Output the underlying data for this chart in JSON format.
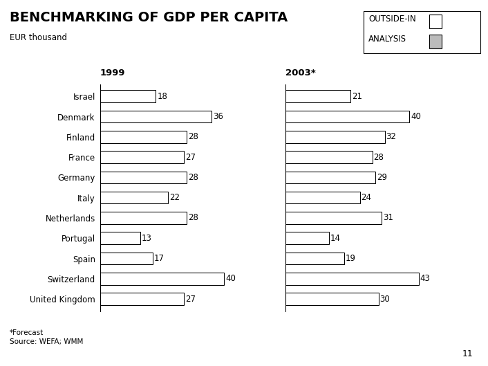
{
  "title": "BENCHMARKING OF GDP PER CAPITA",
  "subtitle": "EUR thousand",
  "year1_label": "1999",
  "year2_label": "2003*",
  "footnote": "*Forecast\nSource: WEFA; WMM",
  "page_number": "11",
  "countries": [
    "Israel",
    "Denmark",
    "Finland",
    "France",
    "Germany",
    "Italy",
    "Netherlands",
    "Portugal",
    "Spain",
    "Switzerland",
    "United Kingdom"
  ],
  "values_1999": [
    18,
    36,
    28,
    27,
    28,
    22,
    28,
    13,
    17,
    40,
    27
  ],
  "values_2003": [
    21,
    40,
    32,
    28,
    29,
    24,
    31,
    14,
    19,
    43,
    30
  ],
  "bar_color": "#ffffff",
  "bar_edge_color": "#000000",
  "background_color": "#ffffff",
  "bar_height": 0.6,
  "max_value": 48,
  "title_fontsize": 14,
  "country_fontsize": 8.5,
  "year_fontsize": 9.5,
  "value_fontsize": 8.5,
  "legend_sq1_color": "#ffffff",
  "legend_sq2_color": "#bbbbbb"
}
